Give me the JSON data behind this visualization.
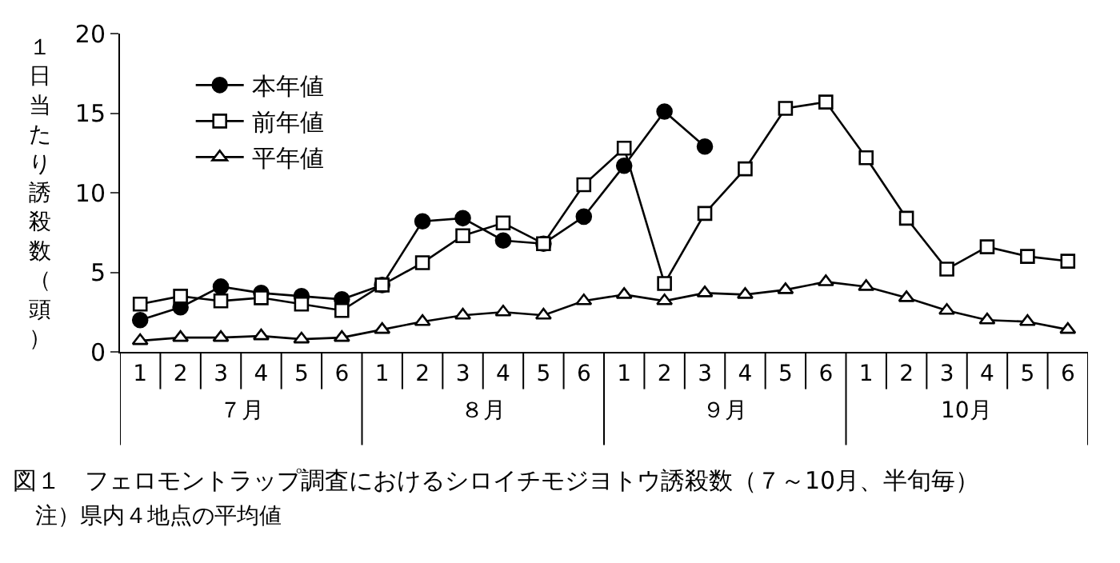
{
  "chart_data": {
    "type": "line",
    "title": "図１　フェロモントラップ調査におけるシロイチモジヨトウ誘殺数（７～10月、半旬毎）",
    "ylabel": "１日当たり誘殺数（頭）",
    "annotations": [
      "７月",
      "８月",
      "９月",
      "10月",
      "注）県内４地点の平均値"
    ],
    "categories": [
      "1",
      "2",
      "3",
      "4",
      "5",
      "6",
      "1",
      "2",
      "3",
      "4",
      "5",
      "6",
      "1",
      "2",
      "3",
      "4",
      "5",
      "6",
      "1",
      "2",
      "3",
      "4",
      "5",
      "6"
    ],
    "series": [
      {
        "name": "本年値",
        "color": "#000000",
        "marker": "circle",
        "values": [
          2.0,
          2.8,
          4.1,
          3.7,
          3.5,
          3.3,
          4.2,
          8.2,
          8.4,
          7.0,
          6.8,
          8.5,
          11.7,
          15.1,
          12.9,
          null,
          null,
          null,
          null,
          null,
          null,
          null,
          null,
          null
        ]
      },
      {
        "name": "前年値",
        "color": "#000000",
        "marker": "square",
        "values": [
          3.0,
          3.5,
          3.2,
          3.4,
          3.0,
          2.6,
          4.2,
          5.6,
          7.3,
          8.1,
          6.8,
          10.5,
          12.8,
          4.3,
          8.7,
          11.5,
          15.3,
          15.7,
          12.2,
          8.4,
          5.2,
          6.6,
          6.0,
          5.7
        ]
      },
      {
        "name": "平年値",
        "color": "#000000",
        "marker": "triangle",
        "values": [
          0.7,
          0.9,
          0.9,
          1.0,
          0.8,
          0.9,
          1.4,
          1.9,
          2.3,
          2.5,
          2.3,
          3.2,
          3.6,
          3.2,
          3.7,
          3.6,
          3.9,
          4.4,
          4.1,
          3.4,
          2.6,
          2.0,
          1.9,
          1.4
        ]
      }
    ],
    "ylim": [
      0,
      20
    ],
    "yticks": [
      0,
      5,
      10,
      15,
      20
    ],
    "legend": "top left"
  }
}
